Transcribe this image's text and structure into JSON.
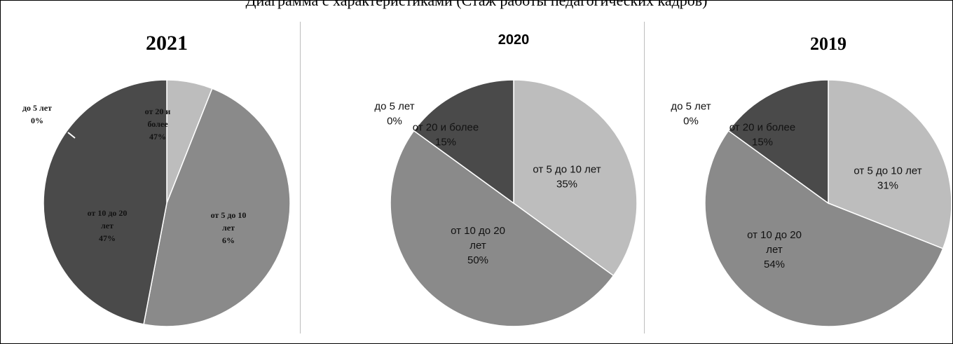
{
  "document": {
    "header": "Диаграмма с характеристиками (Стаж работы педагогических кадров)"
  },
  "palette": {
    "light": "#bdbdbd",
    "mid": "#8a8a8a",
    "dark": "#4a4a4a",
    "label_text": "#111111"
  },
  "chart_data": [
    {
      "type": "pie",
      "title": "2021",
      "slices": [
        {
          "label": "от 5 до 10 лет",
          "value": 6,
          "pct_label": "6%",
          "color": "#bdbdbd"
        },
        {
          "label": "от 10 до 20 лет",
          "value": 47,
          "pct_label": "47%",
          "color": "#8a8a8a"
        },
        {
          "label": "до 5 лет",
          "value": 0,
          "pct_label": "0%",
          "color": "#e0e0e0"
        },
        {
          "label": "от 20 и более",
          "value": 47,
          "pct_label": "47%",
          "color": "#4a4a4a"
        }
      ]
    },
    {
      "type": "pie",
      "title": "2020",
      "slices": [
        {
          "label": "от 5 до 10 лет",
          "value": 35,
          "pct_label": "35%",
          "color": "#bdbdbd"
        },
        {
          "label": "от 10 до 20 лет",
          "value": 50,
          "pct_label": "50%",
          "color": "#8a8a8a"
        },
        {
          "label": "до 5 лет",
          "value": 0,
          "pct_label": "0%",
          "color": "#e0e0e0"
        },
        {
          "label": "от 20 и более",
          "value": 15,
          "pct_label": "15%",
          "color": "#4a4a4a"
        }
      ]
    },
    {
      "type": "pie",
      "title": "2019",
      "slices": [
        {
          "label": "от 5 до 10 лет",
          "value": 31,
          "pct_label": "31%",
          "color": "#bdbdbd"
        },
        {
          "label": "от 10 до 20 лет",
          "value": 54,
          "pct_label": "54%",
          "color": "#8a8a8a"
        },
        {
          "label": "до 5 лет",
          "value": 0,
          "pct_label": "0%",
          "color": "#e0e0e0"
        },
        {
          "label": "от 20 и более",
          "value": 15,
          "pct_label": "15%",
          "color": "#4a4a4a"
        }
      ]
    }
  ]
}
